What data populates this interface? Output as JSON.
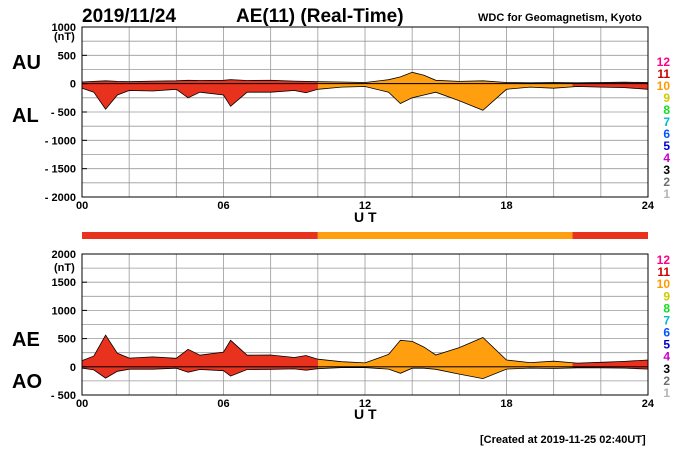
{
  "header": {
    "date": "2019/11/24",
    "title": "AE(11) (Real-Time)",
    "source": "WDC for Geomagnetism, Kyoto"
  },
  "footer": {
    "created": "[Created at 2019-11-25 02:40UT]"
  },
  "colors": {
    "red": "#e8321e",
    "orange": "#ff9f10",
    "grid": "#9a9a9a",
    "legend": [
      "#b4b4b4",
      "#707070",
      "#000000",
      "#cc00cc",
      "#0000cc",
      "#0055ff",
      "#00bbcc",
      "#11dd22",
      "#cccc00",
      "#ff9900",
      "#cc0000",
      "#ff0088"
    ]
  },
  "chart_data": [
    {
      "type": "area",
      "title": "AE(11) (Real-Time)",
      "panel": "AU/AL",
      "upper_label": "AU",
      "lower_label": "AL",
      "xlabel": "U T",
      "ylabel": "(nT)",
      "xlim": [
        0,
        24
      ],
      "ylim": [
        -2000,
        1000
      ],
      "x_ticks": [
        0,
        6,
        12,
        18,
        24
      ],
      "x_tick_labels": [
        "00",
        "06",
        "12",
        "18",
        "24"
      ],
      "y_ticks": [
        1000,
        500,
        0,
        -500,
        -1000,
        -1500,
        -2000
      ],
      "y_tick_labels": [
        "1000",
        "500",
        "0",
        "- 500",
        "- 1000",
        "- 1500",
        "- 2000"
      ],
      "grid": true,
      "series": [
        {
          "name": "AU",
          "x": [
            0,
            0.5,
            1,
            1.5,
            2,
            3,
            4,
            4.5,
            5,
            6,
            6.3,
            7,
            8,
            9,
            9.5,
            10,
            11,
            12,
            13,
            13.5,
            14,
            14.5,
            15,
            16,
            17,
            18,
            19,
            20,
            21,
            22,
            23,
            24
          ],
          "values": [
            30,
            40,
            50,
            40,
            35,
            45,
            50,
            60,
            55,
            60,
            70,
            55,
            60,
            45,
            40,
            35,
            30,
            20,
            70,
            120,
            200,
            150,
            60,
            40,
            50,
            20,
            15,
            20,
            15,
            20,
            25,
            20
          ]
        },
        {
          "name": "AL",
          "x": [
            0,
            0.5,
            1,
            1.5,
            2,
            3,
            4,
            4.5,
            5,
            6,
            6.3,
            7,
            8,
            9,
            9.5,
            10,
            11,
            12,
            13,
            13.5,
            14,
            14.5,
            15,
            16,
            17,
            18,
            19,
            20,
            21,
            22,
            23,
            24
          ],
          "values": [
            -80,
            -150,
            -450,
            -200,
            -120,
            -130,
            -100,
            -250,
            -150,
            -200,
            -400,
            -150,
            -150,
            -120,
            -160,
            -100,
            -60,
            -50,
            -150,
            -350,
            -250,
            -200,
            -150,
            -300,
            -470,
            -100,
            -60,
            -80,
            -50,
            -60,
            -70,
            -100
          ]
        }
      ]
    },
    {
      "type": "area",
      "panel": "AE/AO",
      "upper_label": "AE",
      "lower_label": "AO",
      "xlabel": "U T",
      "ylabel": "(nT)",
      "xlim": [
        0,
        24
      ],
      "ylim": [
        -500,
        2000
      ],
      "x_ticks": [
        0,
        6,
        12,
        18,
        24
      ],
      "x_tick_labels": [
        "00",
        "06",
        "12",
        "18",
        "24"
      ],
      "y_ticks": [
        2000,
        1500,
        1000,
        500,
        0,
        -500
      ],
      "y_tick_labels": [
        "2000",
        "1500",
        "1000",
        "500",
        "0",
        "- 500"
      ],
      "grid": true,
      "series": [
        {
          "name": "AE",
          "x": [
            0,
            0.5,
            1,
            1.5,
            2,
            3,
            4,
            4.5,
            5,
            6,
            6.3,
            7,
            8,
            9,
            9.5,
            10,
            11,
            12,
            13,
            13.5,
            14,
            14.5,
            15,
            16,
            17,
            18,
            19,
            20,
            21,
            22,
            23,
            24
          ],
          "values": [
            110,
            190,
            560,
            240,
            155,
            175,
            150,
            310,
            205,
            260,
            470,
            205,
            210,
            165,
            200,
            135,
            90,
            70,
            220,
            470,
            450,
            350,
            210,
            340,
            520,
            120,
            75,
            100,
            65,
            80,
            95,
            120
          ]
        },
        {
          "name": "AO",
          "x": [
            0,
            0.5,
            1,
            1.5,
            2,
            3,
            4,
            4.5,
            5,
            6,
            6.3,
            7,
            8,
            9,
            9.5,
            10,
            11,
            12,
            13,
            13.5,
            14,
            14.5,
            15,
            16,
            17,
            18,
            19,
            20,
            21,
            22,
            23,
            24
          ],
          "values": [
            -25,
            -55,
            -200,
            -80,
            -43,
            -43,
            -25,
            -95,
            -48,
            -70,
            -165,
            -48,
            -45,
            -38,
            -60,
            -33,
            -15,
            -15,
            -40,
            -115,
            -25,
            -25,
            -45,
            -130,
            -210,
            -40,
            -23,
            -30,
            -18,
            -20,
            -23,
            -40
          ]
        }
      ]
    }
  ],
  "status_bar": {
    "segments": [
      {
        "from": 0,
        "to": 10,
        "color": "red"
      },
      {
        "from": 10,
        "to": 20.8,
        "color": "orange"
      },
      {
        "from": 20.8,
        "to": 24,
        "color": "red"
      }
    ]
  },
  "legend_numbers": [
    "12",
    "11",
    "10",
    "9",
    "8",
    "7",
    "6",
    "5",
    "4",
    "3",
    "2",
    "1"
  ]
}
